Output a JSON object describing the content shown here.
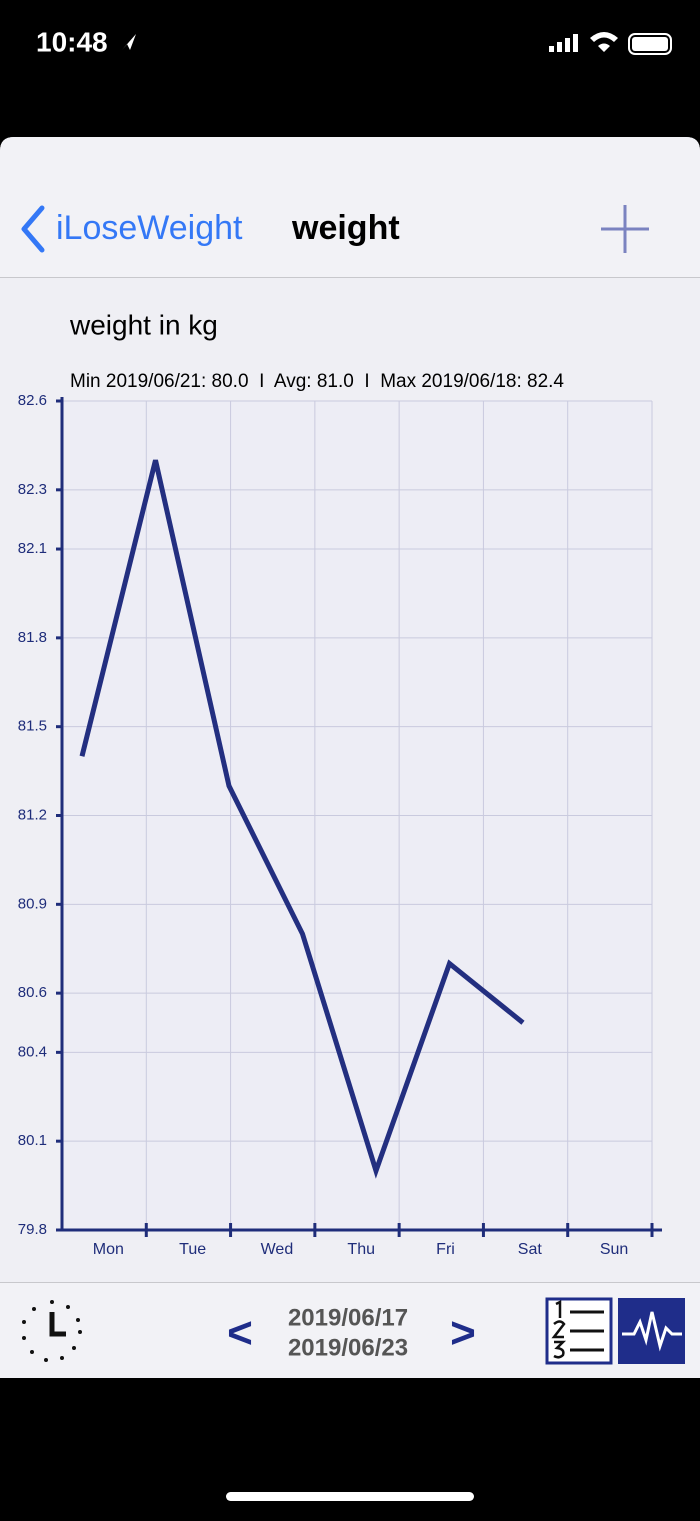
{
  "status_bar": {
    "time": "10:48"
  },
  "nav": {
    "back": "iLoseWeight",
    "title": "weight"
  },
  "chart_data": {
    "type": "line",
    "title": "weight in kg",
    "subtitle": "Min 2019/06/21: 80.0  I  Avg: 81.0  I  Max 2019/06/18: 82.4",
    "categories": [
      "Mon",
      "Tue",
      "Wed",
      "Thu",
      "Fri",
      "Sat",
      "Sun"
    ],
    "values": [
      81.4,
      82.4,
      81.3,
      80.8,
      80.0,
      80.7,
      80.5
    ],
    "color": "#232f80",
    "ylim": [
      79.8,
      82.6
    ],
    "yticks": [
      79.8,
      80.1,
      80.4,
      80.6,
      80.9,
      81.2,
      81.5,
      81.8,
      82.1,
      82.3,
      82.6
    ],
    "grid": true
  },
  "toolbar": {
    "prev": "<",
    "start_date": "2019/06/17",
    "end_date": "2019/06/23",
    "next": ">"
  }
}
